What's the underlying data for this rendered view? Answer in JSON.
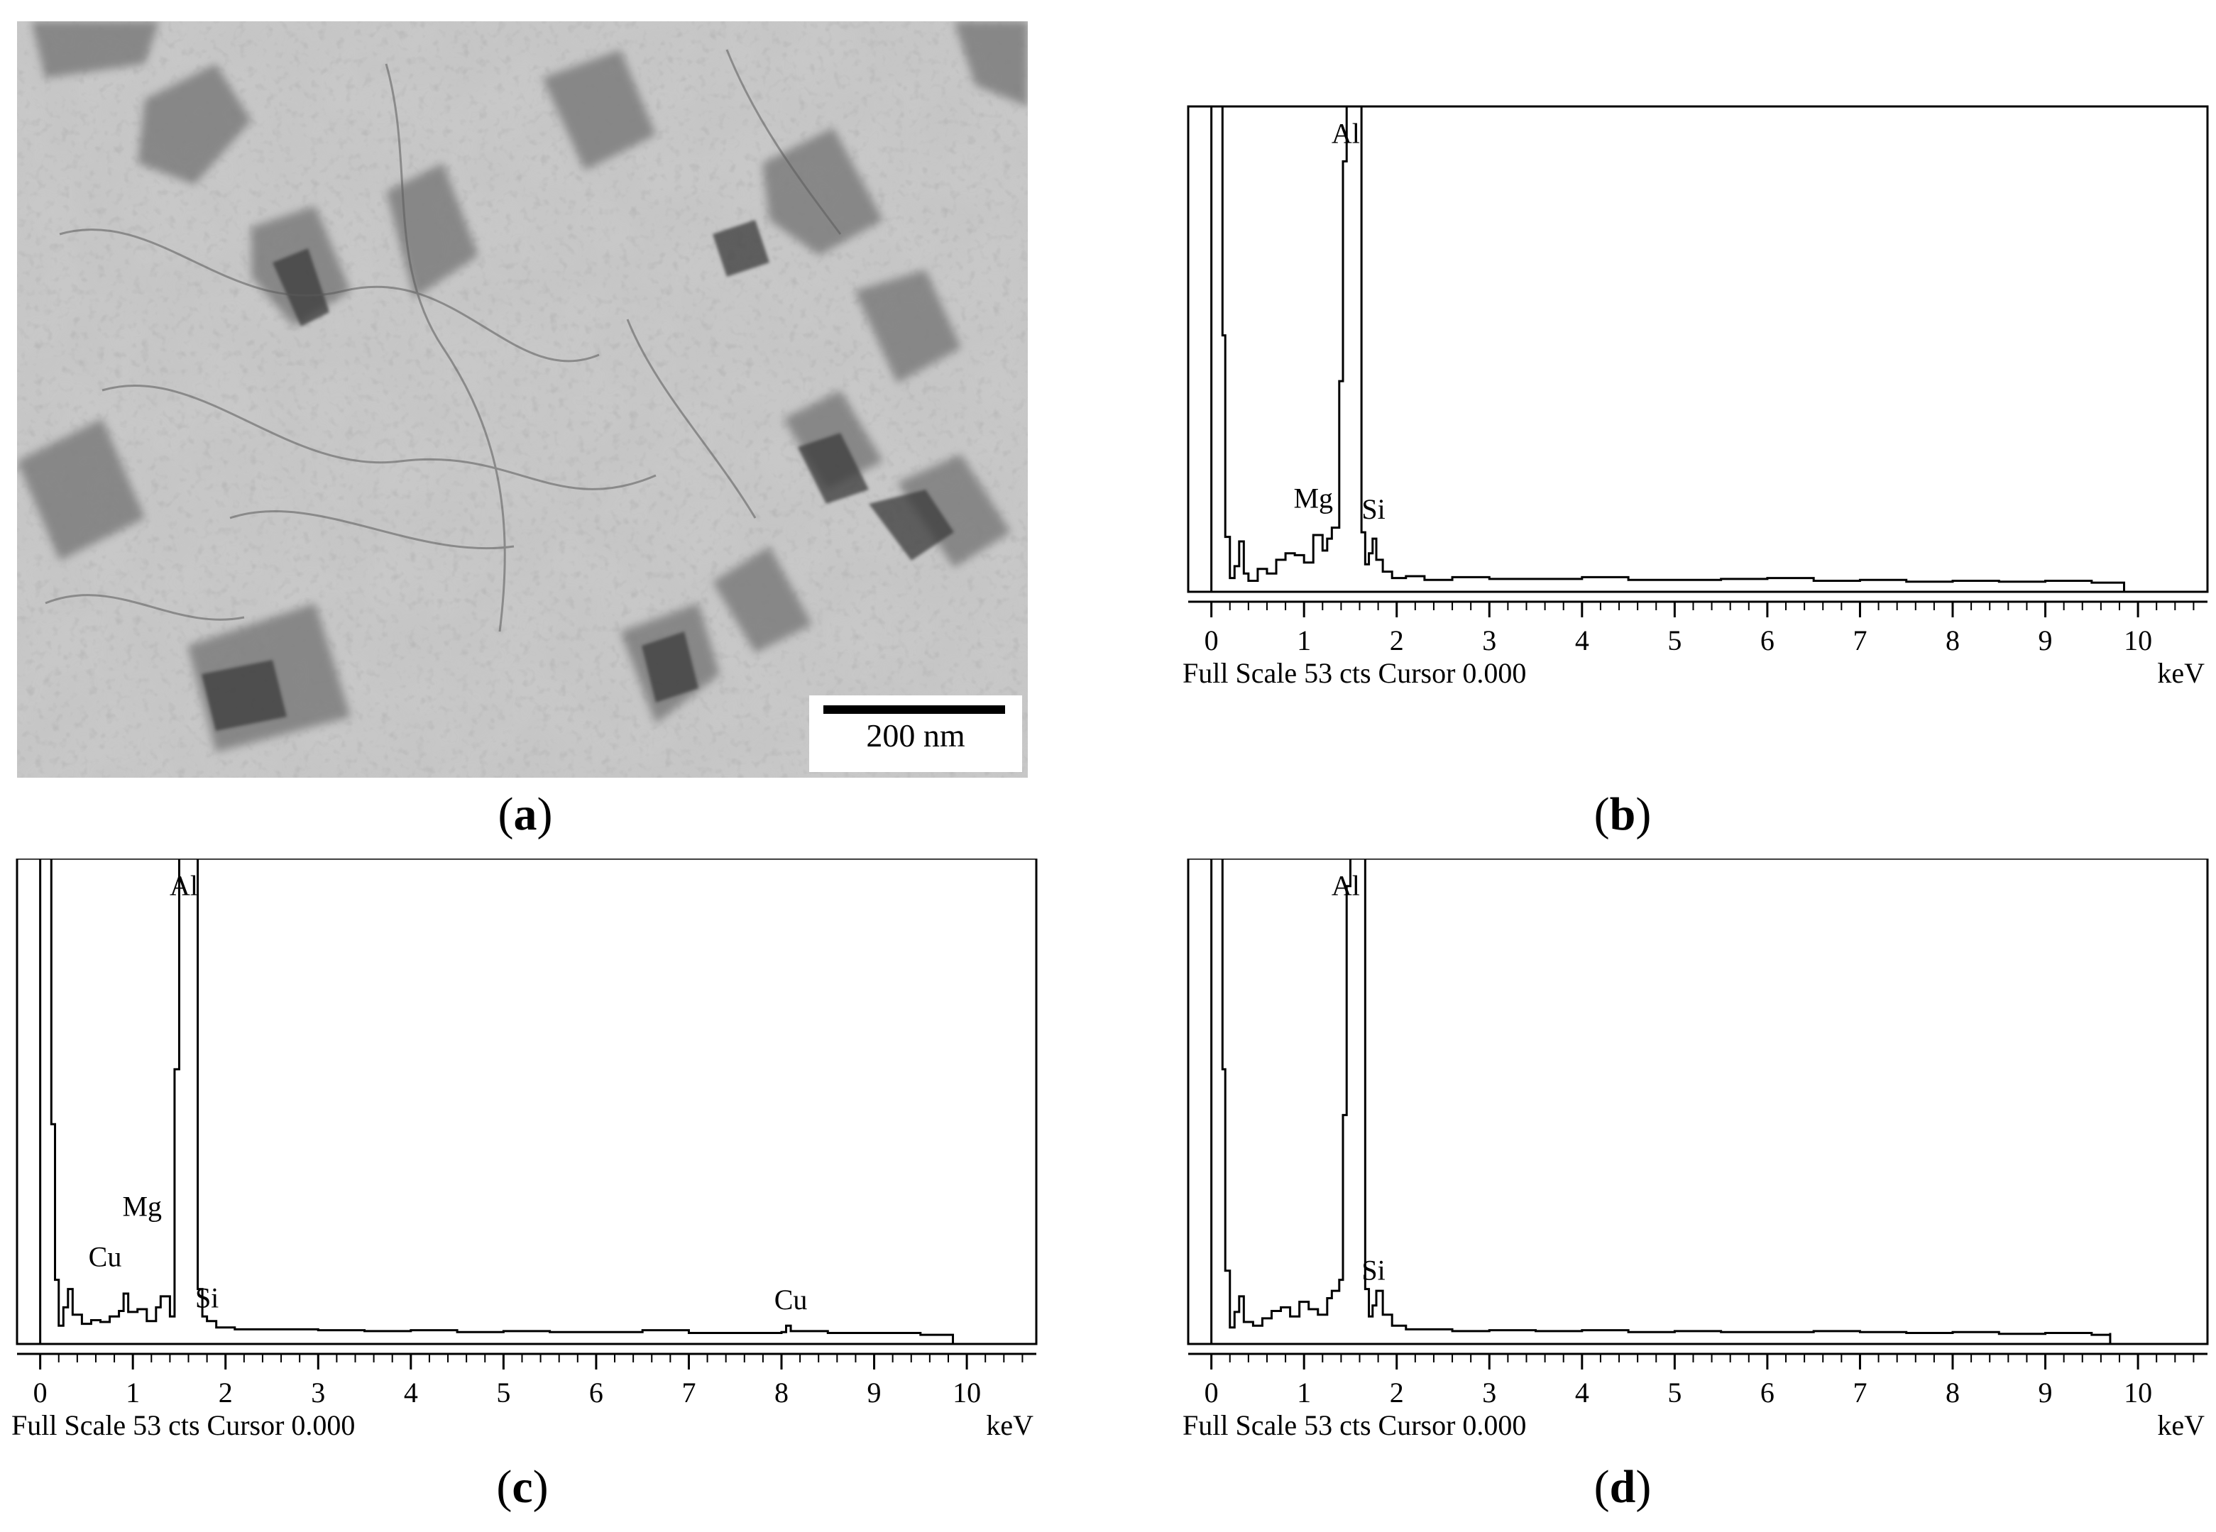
{
  "panels": [
    {
      "id": "a",
      "label": "a",
      "kind": "micrograph",
      "scale_bar": "200 nm"
    },
    {
      "id": "b",
      "label": "b",
      "kind": "spectrum",
      "footer_left": "Full Scale 53 cts Cursor  0.000",
      "footer_right": "keV"
    },
    {
      "id": "c",
      "label": "c",
      "kind": "spectrum",
      "footer_left": "Full Scale 53 cts Cursor  0.000",
      "footer_right": "keV"
    },
    {
      "id": "d",
      "label": "d",
      "kind": "spectrum",
      "footer_left": "Full Scale 53 cts Cursor  0.000",
      "footer_right": "keV"
    }
  ],
  "chart_data": [
    {
      "panel": "b",
      "type": "line",
      "xlabel": "keV",
      "xlim": [
        -0.25,
        10.75
      ],
      "ylim": [
        0,
        53
      ],
      "xticks": [
        "0",
        "1",
        "2",
        "3",
        "4",
        "5",
        "6",
        "7",
        "8",
        "9",
        "10"
      ],
      "grid": false,
      "annotations": [
        {
          "text": "Al",
          "x": 1.45,
          "y": 49
        },
        {
          "text": "Mg",
          "x": 1.1,
          "y": 9.2
        },
        {
          "text": "Si",
          "x": 1.75,
          "y": 8.0
        }
      ],
      "series": [
        {
          "x": [
            0.0,
            0.05,
            0.08,
            0.1,
            0.12,
            0.15,
            0.2,
            0.25,
            0.3,
            0.35,
            0.4,
            0.5,
            0.6,
            0.7,
            0.8,
            0.9,
            1.0,
            1.1,
            1.2,
            1.25,
            1.3,
            1.38,
            1.42,
            1.46,
            1.5,
            1.54,
            1.58,
            1.62,
            1.66,
            1.7,
            1.74,
            1.78,
            1.85,
            1.95,
            2.1,
            2.3,
            2.6,
            3.0,
            3.5,
            4.0,
            4.5,
            5.0,
            5.5,
            6.0,
            6.5,
            7.0,
            7.5,
            8.0,
            8.5,
            9.0,
            9.5,
            9.85
          ],
          "y": [
            53,
            53,
            53,
            53,
            28,
            6,
            1.5,
            2.8,
            5.5,
            2.0,
            1.2,
            2.5,
            2.0,
            3.5,
            4.2,
            4.0,
            3.2,
            6.2,
            4.5,
            5.8,
            7.0,
            23,
            47,
            53,
            53,
            53,
            53,
            6.5,
            3.0,
            4.2,
            5.8,
            3.5,
            2.2,
            1.5,
            1.7,
            1.3,
            1.6,
            1.4,
            1.4,
            1.6,
            1.3,
            1.3,
            1.4,
            1.5,
            1.2,
            1.3,
            1.1,
            1.2,
            1.1,
            1.2,
            1.0,
            0.9
          ]
        }
      ]
    },
    {
      "panel": "c",
      "type": "line",
      "xlabel": "keV",
      "xlim": [
        -0.25,
        10.75
      ],
      "ylim": [
        0,
        53
      ],
      "xticks": [
        "0",
        "1",
        "2",
        "3",
        "4",
        "5",
        "6",
        "7",
        "8",
        "9",
        "10"
      ],
      "grid": false,
      "annotations": [
        {
          "text": "Al",
          "x": 1.55,
          "y": 49
        },
        {
          "text": "Mg",
          "x": 1.1,
          "y": 14
        },
        {
          "text": "Cu",
          "x": 0.7,
          "y": 8.5
        },
        {
          "text": "Si",
          "x": 1.8,
          "y": 4.0
        },
        {
          "text": "Cu",
          "x": 8.1,
          "y": 3.8
        }
      ],
      "series": [
        {
          "x": [
            0.0,
            0.05,
            0.08,
            0.12,
            0.16,
            0.2,
            0.25,
            0.3,
            0.35,
            0.45,
            0.55,
            0.65,
            0.75,
            0.85,
            0.9,
            0.95,
            1.05,
            1.15,
            1.25,
            1.3,
            1.4,
            1.45,
            1.5,
            1.55,
            1.6,
            1.65,
            1.7,
            1.75,
            1.8,
            1.9,
            2.1,
            2.5,
            3.0,
            3.5,
            4.0,
            4.5,
            5.0,
            5.5,
            6.0,
            6.5,
            7.0,
            7.5,
            8.0,
            8.05,
            8.1,
            8.5,
            9.0,
            9.5,
            9.85
          ],
          "y": [
            53,
            53,
            53,
            24,
            7,
            2.0,
            4.0,
            6.0,
            3.2,
            2.2,
            2.6,
            2.4,
            3.0,
            3.6,
            5.5,
            3.5,
            3.8,
            2.5,
            4.0,
            5.2,
            3.0,
            30,
            53,
            53,
            53,
            53,
            6.0,
            3.0,
            2.5,
            1.8,
            1.6,
            1.6,
            1.5,
            1.4,
            1.5,
            1.3,
            1.4,
            1.3,
            1.3,
            1.5,
            1.2,
            1.2,
            1.3,
            2.0,
            1.4,
            1.2,
            1.2,
            1.0,
            0.9
          ]
        }
      ]
    },
    {
      "panel": "d",
      "type": "line",
      "xlabel": "keV",
      "xlim": [
        -0.25,
        10.75
      ],
      "ylim": [
        0,
        53
      ],
      "xticks": [
        "0",
        "1",
        "2",
        "3",
        "4",
        "5",
        "6",
        "7",
        "8",
        "9",
        "10"
      ],
      "grid": false,
      "annotations": [
        {
          "text": "Al",
          "x": 1.45,
          "y": 49
        },
        {
          "text": "Si",
          "x": 1.75,
          "y": 7.0
        }
      ],
      "series": [
        {
          "x": [
            0.0,
            0.05,
            0.08,
            0.1,
            0.12,
            0.15,
            0.2,
            0.25,
            0.3,
            0.35,
            0.45,
            0.55,
            0.65,
            0.75,
            0.85,
            0.95,
            1.05,
            1.15,
            1.25,
            1.3,
            1.38,
            1.42,
            1.46,
            1.5,
            1.54,
            1.58,
            1.62,
            1.66,
            1.7,
            1.74,
            1.78,
            1.85,
            1.95,
            2.1,
            2.3,
            2.6,
            3.0,
            3.5,
            4.0,
            4.5,
            5.0,
            5.5,
            6.0,
            6.5,
            7.0,
            7.5,
            8.0,
            8.5,
            9.0,
            9.5,
            9.7
          ],
          "y": [
            53,
            53,
            53,
            53,
            30,
            8,
            1.8,
            3.5,
            5.2,
            2.4,
            2.0,
            2.8,
            3.6,
            4.0,
            3.0,
            4.6,
            3.8,
            3.2,
            5.0,
            5.8,
            7.0,
            25,
            50,
            53,
            53,
            53,
            53,
            6.0,
            3.0,
            4.2,
            5.8,
            3.2,
            2.0,
            1.6,
            1.6,
            1.4,
            1.5,
            1.4,
            1.5,
            1.3,
            1.4,
            1.3,
            1.3,
            1.4,
            1.3,
            1.2,
            1.3,
            1.1,
            1.2,
            1.0,
            1.2
          ]
        }
      ]
    }
  ]
}
